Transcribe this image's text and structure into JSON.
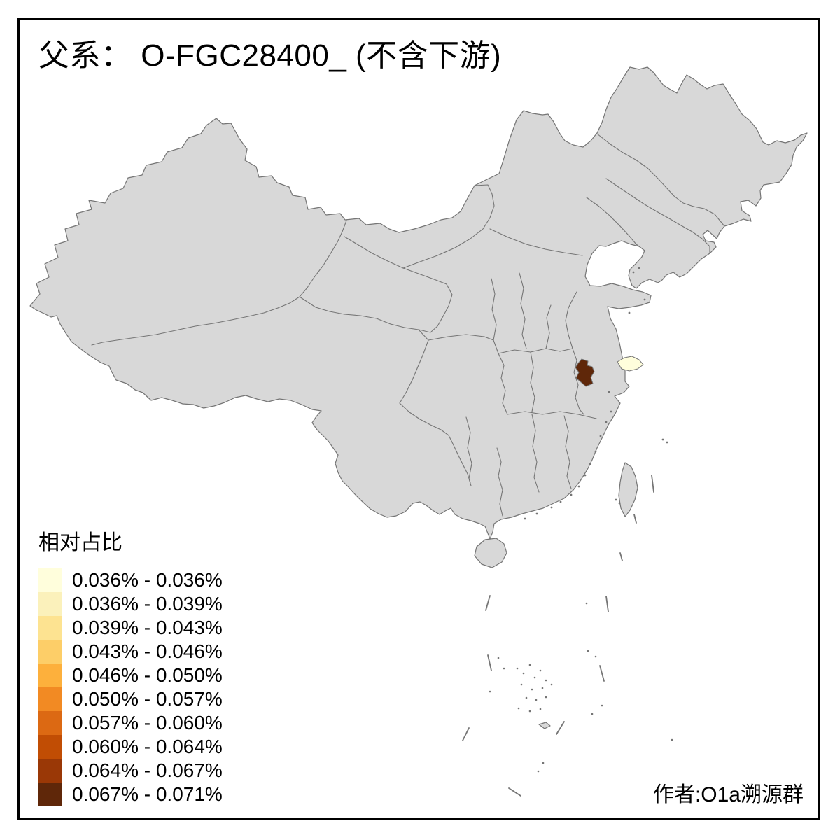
{
  "title": "父系： O-FGC28400_ (不含下游)",
  "credit": "作者:O1a溯源群",
  "legend": {
    "title": "相对占比",
    "buckets": [
      {
        "label": "0.036% - 0.036%",
        "color": "#FFFEDC"
      },
      {
        "label": "0.036% - 0.039%",
        "color": "#FBF1BB"
      },
      {
        "label": "0.039% - 0.043%",
        "color": "#FDE391"
      },
      {
        "label": "0.043% - 0.046%",
        "color": "#FDCE68"
      },
      {
        "label": "0.046% - 0.050%",
        "color": "#FDB03C"
      },
      {
        "label": "0.050% - 0.057%",
        "color": "#F28A23"
      },
      {
        "label": "0.057% - 0.060%",
        "color": "#DC6913"
      },
      {
        "label": "0.060% - 0.064%",
        "color": "#C14D04"
      },
      {
        "label": "0.064% - 0.067%",
        "color": "#9A3806"
      },
      {
        "label": "0.067% - 0.071%",
        "color": "#5F2709"
      }
    ]
  },
  "map": {
    "land_color": "#D8D8D8",
    "border_color": "#757575",
    "sea_color": "#FFFFFF",
    "frame_color": "#000000",
    "highlighted_regions": [
      {
        "id": "highlight-region-dark",
        "bucket_label": "0.067% - 0.071%",
        "color": "#5F2709",
        "location": "central-east China prefecture"
      },
      {
        "id": "highlight-region-pale",
        "bucket_label": "0.036% - 0.036%",
        "color": "#FFFEDC",
        "location": "east coast prefecture"
      }
    ]
  },
  "chart_data": {
    "type": "heatmap",
    "subtype": "choropleth-map-of-china",
    "title": "父系： O-FGC28400_ (不含下游)",
    "legend_title": "相对占比",
    "bins": [
      "0.036% - 0.036%",
      "0.036% - 0.039%",
      "0.039% - 0.043%",
      "0.043% - 0.046%",
      "0.046% - 0.050%",
      "0.050% - 0.057%",
      "0.057% - 0.060%",
      "0.060% - 0.064%",
      "0.064% - 0.067%",
      "0.067% - 0.071%"
    ],
    "bin_colors": [
      "#FFFEDC",
      "#FBF1BB",
      "#FDE391",
      "#FDCE68",
      "#FDB03C",
      "#F28A23",
      "#DC6913",
      "#C14D04",
      "#9A3806",
      "#5F2709"
    ],
    "regions": [
      {
        "region": "dark highlighted prefecture (central-east China)",
        "bin": "0.067% - 0.071%"
      },
      {
        "region": "pale highlighted prefecture (east coast)",
        "bin": "0.036% - 0.036%"
      }
    ],
    "other_regions": "gray (no value shown)",
    "legend_position": "bottom-left",
    "annotation_bottom_right": "作者:O1a溯源群"
  }
}
